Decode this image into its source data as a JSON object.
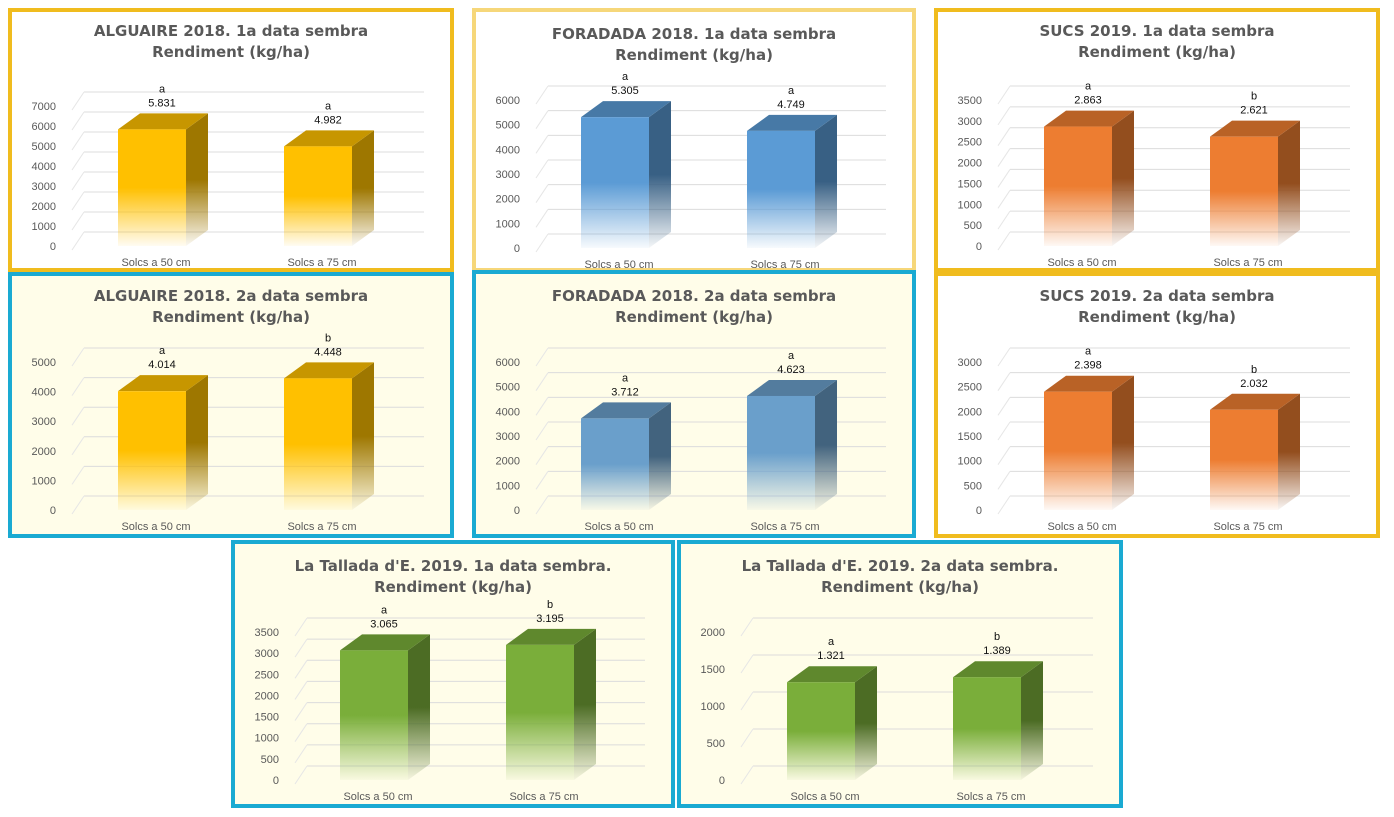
{
  "chart_data": [
    {
      "type": "bar",
      "title": "ALGUAIRE 2018. 1a data sembra",
      "subtitle": "Rendiment (kg/ha)",
      "categories": [
        "Solcs a 50 cm",
        "Solcs a 75 cm"
      ],
      "values": [
        5831,
        4982
      ],
      "value_labels": [
        "5.831",
        "4.982"
      ],
      "letters": [
        "a",
        "a"
      ],
      "ylim": [
        0,
        7000
      ],
      "yticks": [
        0,
        1000,
        2000,
        3000,
        4000,
        5000,
        6000,
        7000
      ],
      "grid": true,
      "bar_color": "#FFC000",
      "frame_color": "#F0BC1E",
      "background": "#FFFFFF"
    },
    {
      "type": "bar",
      "title": "FORADADA 2018. 1a data sembra",
      "subtitle": "Rendiment (kg/ha)",
      "categories": [
        "Solcs a 50 cm",
        "Solcs a 75 cm"
      ],
      "values": [
        5305,
        4749
      ],
      "value_labels": [
        "5.305",
        "4.749"
      ],
      "letters": [
        "a",
        "a"
      ],
      "ylim": [
        0,
        6000
      ],
      "yticks": [
        0,
        1000,
        2000,
        3000,
        4000,
        5000,
        6000
      ],
      "grid": true,
      "bar_color": "#5B9BD5",
      "frame_color": "#F6D77A",
      "background": "#FFFFFF"
    },
    {
      "type": "bar",
      "title": "SUCS 2019. 1a data sembra",
      "subtitle": "Rendiment (kg/ha)",
      "categories": [
        "Solcs a 50 cm",
        "Solcs a 75 cm"
      ],
      "values": [
        2863,
        2621
      ],
      "value_labels": [
        "2.863",
        "2.621"
      ],
      "letters": [
        "a",
        "b"
      ],
      "ylim": [
        0,
        3500
      ],
      "yticks": [
        0,
        500,
        1000,
        1500,
        2000,
        2500,
        3000,
        3500
      ],
      "grid": true,
      "bar_color": "#ED7D31",
      "frame_color": "#F0BC1E",
      "background": "#FFFFFF"
    },
    {
      "type": "bar",
      "title": "ALGUAIRE 2018. 2a data sembra",
      "subtitle": "Rendiment (kg/ha)",
      "categories": [
        "Solcs a 50 cm",
        "Solcs a 75 cm"
      ],
      "values": [
        4014,
        4448
      ],
      "value_labels": [
        "4.014",
        "4.448"
      ],
      "letters": [
        "a",
        "b"
      ],
      "ylim": [
        0,
        5000
      ],
      "yticks": [
        0,
        1000,
        2000,
        3000,
        4000,
        5000
      ],
      "grid": true,
      "bar_color": "#FFC000",
      "frame_color": "#1AAAD2",
      "background": "#FFFDE9"
    },
    {
      "type": "bar",
      "title": "FORADADA 2018. 2a data sembra",
      "subtitle": "Rendiment (kg/ha)",
      "categories": [
        "Solcs a 50 cm",
        "Solcs a 75 cm"
      ],
      "values": [
        3712,
        4623
      ],
      "value_labels": [
        "3.712",
        "4.623"
      ],
      "letters": [
        "a",
        "a"
      ],
      "ylim": [
        0,
        6000
      ],
      "yticks": [
        0,
        1000,
        2000,
        3000,
        4000,
        5000,
        6000
      ],
      "grid": true,
      "bar_color": "#6A9FCB",
      "frame_color": "#1AAAD2",
      "background": "#FFFDE9"
    },
    {
      "type": "bar",
      "title": "SUCS 2019. 2a data sembra",
      "subtitle": "Rendiment (kg/ha)",
      "categories": [
        "Solcs a 50 cm",
        "Solcs a 75 cm"
      ],
      "values": [
        2398,
        2032
      ],
      "value_labels": [
        "2.398",
        "2.032"
      ],
      "letters": [
        "a",
        "b"
      ],
      "ylim": [
        0,
        3000
      ],
      "yticks": [
        0,
        500,
        1000,
        1500,
        2000,
        2500,
        3000
      ],
      "grid": true,
      "bar_color": "#ED7D31",
      "frame_color": "#F0BC1E",
      "background": "#FFFFFF"
    },
    {
      "type": "bar",
      "title": "La Tallada d'E. 2019. 1a data sembra.",
      "subtitle": "Rendiment (kg/ha)",
      "categories": [
        "Solcs a 50 cm",
        "Solcs a 75 cm"
      ],
      "values": [
        3065,
        3195
      ],
      "value_labels": [
        "3.065",
        "3.195"
      ],
      "letters": [
        "a",
        "b"
      ],
      "ylim": [
        0,
        3500
      ],
      "yticks": [
        0,
        500,
        1000,
        1500,
        2000,
        2500,
        3000,
        3500
      ],
      "grid": true,
      "bar_color": "#7AAE3A",
      "frame_color": "#1AAAD2",
      "background": "#FFFDE9"
    },
    {
      "type": "bar",
      "title": "La Tallada d'E. 2019. 2a data sembra.",
      "subtitle": "Rendiment (kg/ha)",
      "categories": [
        "Solcs a 50 cm",
        "Solcs a 75 cm"
      ],
      "values": [
        1321,
        1389
      ],
      "value_labels": [
        "1.321",
        "1.389"
      ],
      "letters": [
        "a",
        "b"
      ],
      "ylim": [
        0,
        2000
      ],
      "yticks": [
        0,
        500,
        1000,
        1500,
        2000
      ],
      "grid": true,
      "bar_color": "#7AAE3A",
      "frame_color": "#1AAAD2",
      "background": "#FFFDE9"
    }
  ]
}
